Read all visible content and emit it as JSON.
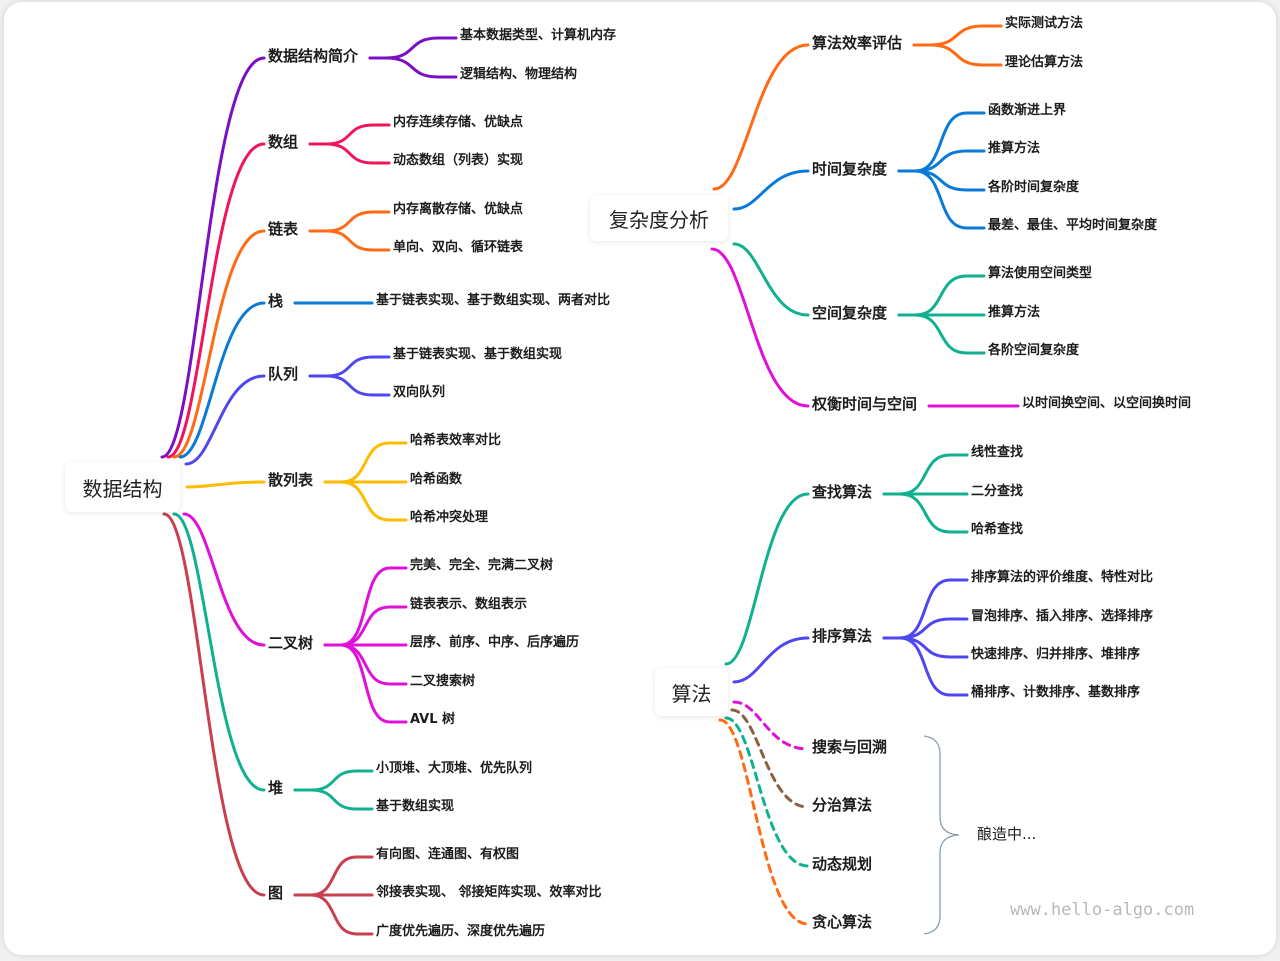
{
  "trees": [
    {
      "root": "数据结构",
      "branches": [
        {
          "label": "数据结构简介",
          "color": "#7b0fc4",
          "children": [
            "基本数据类型、计算机内存",
            "逻辑结构、物理结构"
          ]
        },
        {
          "label": "数组",
          "color": "#f0145a",
          "children": [
            "内存连续存储、优缺点",
            "动态数组（列表）实现"
          ]
        },
        {
          "label": "链表",
          "color": "#ff6a14",
          "children": [
            "内存离散存储、优缺点",
            "单向、双向、循环链表"
          ]
        },
        {
          "label": "栈",
          "color": "#0a7ad8",
          "children": [
            "基于链表实现、基于数组实现、两者对比"
          ]
        },
        {
          "label": "队列",
          "color": "#5046f0",
          "children": [
            "基于链表实现、基于数组实现",
            "双向队列"
          ]
        },
        {
          "label": "散列表",
          "color": "#ffbb00",
          "children": [
            "哈希表效率对比",
            "哈希函数",
            "哈希冲突处理"
          ]
        },
        {
          "label": "二叉树",
          "color": "#e010d8",
          "children": [
            "完美、完全、完满二叉树",
            "链表表示、数组表示",
            "层序、前序、中序、后序遍历",
            "二叉搜索树",
            "AVL 树"
          ]
        },
        {
          "label": "堆",
          "color": "#10b090",
          "children": [
            "小顶堆、大顶堆、优先队列",
            "基于数组实现"
          ]
        },
        {
          "label": "图",
          "color": "#c84050",
          "children": [
            "有向图、连通图、有权图",
            "邻接表实现、 邻接矩阵实现、效率对比",
            "广度优先遍历、深度优先遍历"
          ]
        }
      ]
    },
    {
      "root": "复杂度分析",
      "branches": [
        {
          "label": "算法效率评估",
          "color": "#ff6a14",
          "children": [
            "实际测试方法",
            "理论估算方法"
          ]
        },
        {
          "label": "时间复杂度",
          "color": "#0a7ad8",
          "children": [
            "函数渐进上界",
            "推算方法",
            "各阶时间复杂度",
            "最差、最佳、平均时间复杂度"
          ]
        },
        {
          "label": "空间复杂度",
          "color": "#10b090",
          "children": [
            "算法使用空间类型",
            "推算方法",
            "各阶空间复杂度"
          ]
        },
        {
          "label": "权衡时间与空间",
          "color": "#e010d8",
          "children": [
            "以时间换空间、以空间换时间"
          ]
        }
      ]
    },
    {
      "root": "算法",
      "branches": [
        {
          "label": "查找算法",
          "color": "#10b090",
          "children": [
            "线性查找",
            "二分查找",
            "哈希查找"
          ]
        },
        {
          "label": "排序算法",
          "color": "#5046f0",
          "children": [
            "排序算法的评价维度、特性对比",
            "冒泡排序、插入排序、选择排序",
            "快速排序、归并排序、堆排序",
            "桶排序、计数排序、基数排序"
          ]
        },
        {
          "label": "搜索与回溯",
          "color": "#e010d8",
          "style": "dashed",
          "children": []
        },
        {
          "label": "分治算法",
          "color": "#8a6040",
          "style": "dashed",
          "children": []
        },
        {
          "label": "动态规划",
          "color": "#10b090",
          "style": "dashed",
          "children": []
        },
        {
          "label": "贪心算法",
          "color": "#ff6a14",
          "style": "dashed",
          "children": []
        }
      ]
    }
  ],
  "brace_label": "酿造中...",
  "brace_color": "#8aa0b4",
  "watermark": "www.hello-algo.com"
}
